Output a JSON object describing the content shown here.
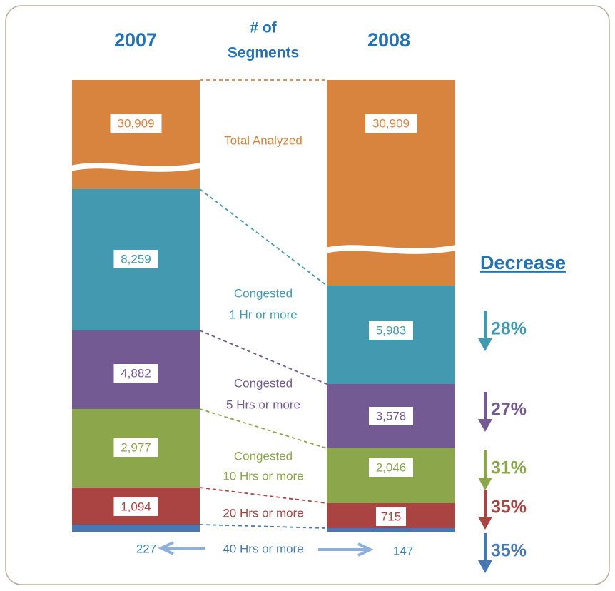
{
  "header": {
    "left_year": "2007",
    "middle": [
      "# of",
      "Segments"
    ],
    "right_year": "2008"
  },
  "decrease_title": "Decrease",
  "rows": [
    {
      "label": [
        "Total Analyzed"
      ],
      "left": "30,909",
      "right": "30,909",
      "color": "#D9843E"
    },
    {
      "label": [
        "Congested",
        "1 Hr or more"
      ],
      "left": "8,259",
      "right": "5,983",
      "decrease": "28%",
      "color": "#4299B0"
    },
    {
      "label": [
        "Congested",
        "5 Hrs or more"
      ],
      "left": "4,882",
      "right": "3,578",
      "decrease": "27%",
      "color": "#745A92"
    },
    {
      "label": [
        "Congested",
        "10 Hrs or more"
      ],
      "left": "2,977",
      "right": "2,046",
      "decrease": "31%",
      "color": "#8CA64B"
    },
    {
      "label": [
        "20 Hrs or more"
      ],
      "left": "1,094",
      "right": "715",
      "decrease": "35%",
      "color": "#A94442"
    },
    {
      "label": [
        "40 Hrs or more"
      ],
      "left": "227",
      "right": "147",
      "decrease": "35%",
      "color": "#4778B4"
    }
  ]
}
